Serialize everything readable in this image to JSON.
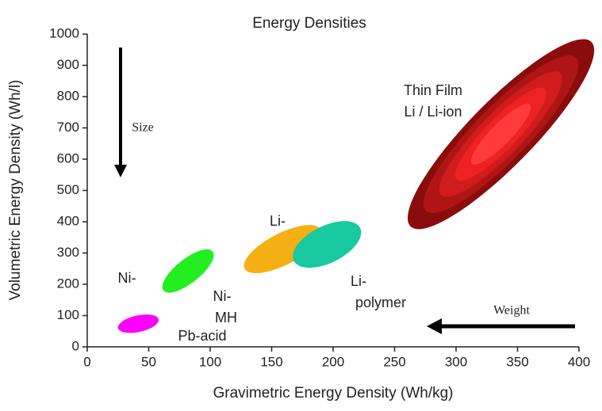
{
  "chart_data": {
    "type": "region",
    "title": "Energy Densities",
    "x_label": "Gravimetric Energy Density (Wh/kg)",
    "y_label": "Volumetric Energy Density (Wh/l)",
    "xlim": [
      0,
      400
    ],
    "ylim": [
      0,
      1000
    ],
    "xticks": [
      0,
      50,
      100,
      150,
      200,
      250,
      300,
      350,
      400
    ],
    "yticks": [
      0,
      100,
      200,
      300,
      400,
      500,
      600,
      700,
      800,
      900,
      1000
    ],
    "series": [
      {
        "color": "#ff00ff",
        "x": [
          25,
          58
        ],
        "y": [
          60,
          88
        ]
      },
      {
        "color": "#22ee22",
        "x": [
          62,
          102
        ],
        "y": [
          180,
          305
        ]
      },
      {
        "color": "#f5b014",
        "x": [
          128,
          190
        ],
        "y": [
          250,
          375
        ]
      },
      {
        "color": "#19c9a0",
        "x": [
          168,
          222
        ],
        "y": [
          275,
          380
        ]
      },
      {
        "colors": [
          "#8b0c0c",
          "#b01515",
          "#d01c1c",
          "#ee2222",
          "#ff3a3a"
        ],
        "x": [
          263,
          410
        ],
        "y": [
          385,
          975
        ]
      }
    ],
    "annotations": [
      {
        "text": "Pb-acid",
        "color": "#ff00ff"
      },
      {
        "text": "Ni-",
        "color": "#222222"
      },
      {
        "text": "Ni-",
        "color": "#222222"
      },
      {
        "text": "MH",
        "color": "#222222"
      },
      {
        "text": "Li-",
        "color": "#aaaaaa"
      },
      {
        "text": "Li-",
        "color": "#19c9a0"
      },
      {
        "text": "polymer",
        "color": "#19c9a0"
      },
      {
        "text": "Thin Film",
        "color": "#ee2222"
      },
      {
        "text": "Li / Li-ion",
        "color": "#ee2222"
      },
      {
        "text": "Size",
        "color": "#000000"
      },
      {
        "text": "Weight",
        "color": "#000000"
      }
    ]
  }
}
